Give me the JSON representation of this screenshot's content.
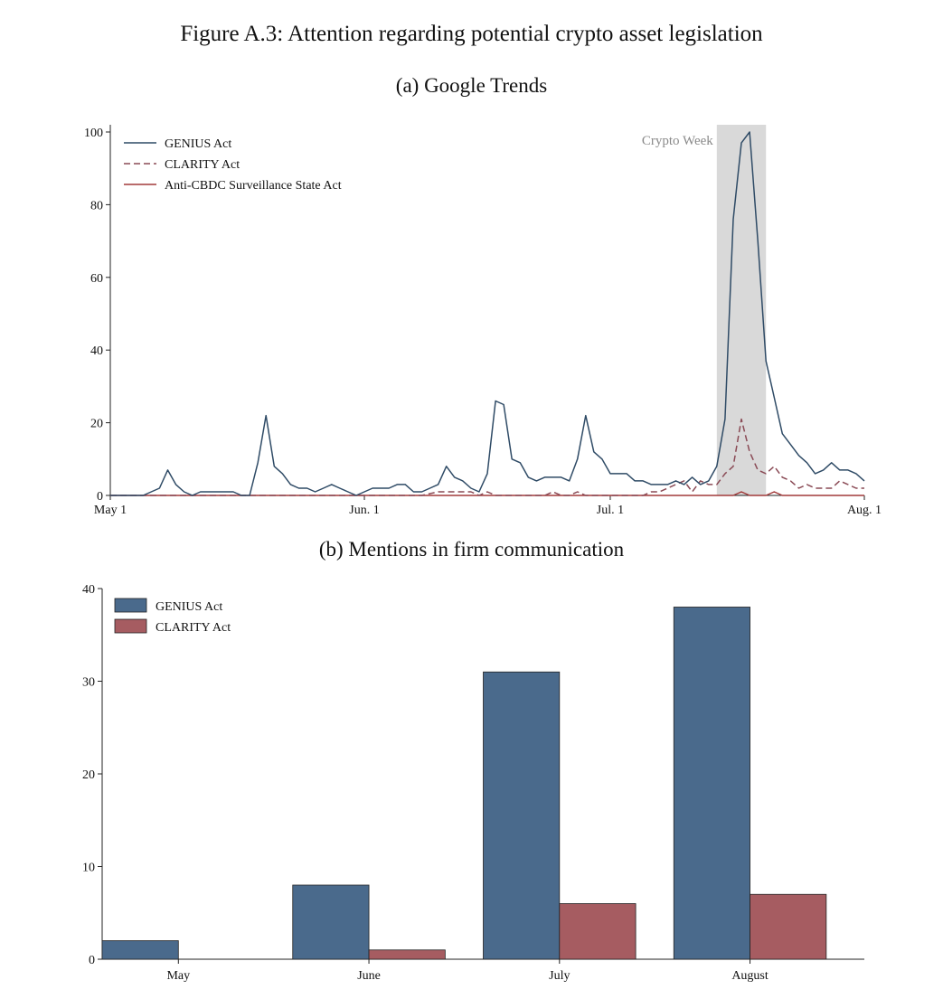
{
  "figure_title": "Figure A.3: Attention regarding potential crypto asset legislation",
  "chart_data": [
    {
      "type": "line",
      "title": "(a) Google Trends",
      "xlabel": "",
      "ylabel": "",
      "ylim": [
        0,
        100
      ],
      "yticks": [
        0,
        20,
        40,
        60,
        80,
        100
      ],
      "xticks": [
        {
          "day": 0,
          "label": "May 1"
        },
        {
          "day": 31,
          "label": "Jun. 1"
        },
        {
          "day": 61,
          "label": "Jul. 1"
        },
        {
          "day": 92,
          "label": "Aug. 1"
        }
      ],
      "shaded_region": {
        "label": "Crypto Week",
        "from_day": 74,
        "to_day": 80,
        "color": "#d9d9d9"
      },
      "legend_position": "top-left",
      "colors": {
        "genius": "#2f4b66",
        "clarity": "#8a4a55",
        "anticbdc": "#a23a3a"
      },
      "series": [
        {
          "name": "GENIUS Act",
          "style": "solid",
          "x": [
            0,
            1,
            2,
            3,
            4,
            5,
            6,
            7,
            8,
            9,
            10,
            11,
            12,
            13,
            14,
            15,
            16,
            17,
            18,
            19,
            20,
            21,
            22,
            23,
            24,
            25,
            26,
            27,
            28,
            29,
            30,
            31,
            32,
            33,
            34,
            35,
            36,
            37,
            38,
            39,
            40,
            41,
            42,
            43,
            44,
            45,
            46,
            47,
            48,
            49,
            50,
            51,
            52,
            53,
            54,
            55,
            56,
            57,
            58,
            59,
            60,
            61,
            62,
            63,
            64,
            65,
            66,
            67,
            68,
            69,
            70,
            71,
            72,
            73,
            74,
            75,
            76,
            77,
            78,
            79,
            80,
            81,
            82,
            83,
            84,
            85,
            86,
            87,
            88,
            89,
            90,
            91,
            92
          ],
          "y": [
            0,
            0,
            0,
            0,
            0,
            1,
            2,
            7,
            3,
            1,
            0,
            1,
            1,
            1,
            1,
            1,
            0,
            0,
            9,
            22,
            8,
            6,
            3,
            2,
            2,
            1,
            2,
            3,
            2,
            1,
            0,
            1,
            2,
            2,
            2,
            3,
            3,
            1,
            1,
            2,
            3,
            8,
            5,
            4,
            2,
            1,
            6,
            26,
            25,
            10,
            9,
            5,
            4,
            5,
            5,
            5,
            4,
            10,
            22,
            12,
            10,
            6,
            6,
            6,
            4,
            4,
            3,
            3,
            3,
            4,
            3,
            5,
            3,
            4,
            8,
            21,
            76,
            97,
            100,
            70,
            37,
            27,
            17,
            14,
            11,
            9,
            6,
            7,
            9,
            7,
            7,
            6,
            4
          ]
        },
        {
          "name": "CLARITY Act",
          "style": "dashed",
          "x": [
            0,
            38,
            40,
            42,
            44,
            45,
            46,
            47,
            52,
            53,
            54,
            55,
            56,
            57,
            58,
            59,
            60,
            65,
            66,
            67,
            68,
            69,
            70,
            71,
            72,
            73,
            74,
            75,
            76,
            77,
            78,
            79,
            80,
            81,
            82,
            83,
            84,
            85,
            86,
            87,
            88,
            89,
            90,
            91,
            92
          ],
          "y": [
            0,
            0,
            1,
            1,
            1,
            0,
            1,
            0,
            0,
            0,
            1,
            0,
            0,
            1,
            0,
            0,
            0,
            0,
            1,
            1,
            2,
            3,
            4,
            1,
            4,
            3,
            3,
            6,
            8,
            21,
            12,
            7,
            6,
            8,
            5,
            4,
            2,
            3,
            2,
            2,
            2,
            4,
            3,
            2,
            2
          ]
        },
        {
          "name": "Anti-CBDC Surveillance State Act",
          "style": "solid",
          "x": [
            0,
            75,
            76,
            77,
            78,
            79,
            80,
            81,
            82,
            83,
            92
          ],
          "y": [
            0,
            0,
            0,
            1,
            0,
            0,
            0,
            1,
            0,
            0,
            0
          ]
        }
      ]
    },
    {
      "type": "bar",
      "title": "(b) Mentions in firm communication",
      "xlabel": "",
      "ylabel": "",
      "ylim": [
        0,
        40
      ],
      "yticks": [
        0,
        10,
        20,
        30,
        40
      ],
      "categories": [
        "May",
        "June",
        "July",
        "August"
      ],
      "legend_position": "top-left",
      "colors": {
        "genius": "#4a6a8c",
        "clarity": "#a65c61"
      },
      "series": [
        {
          "name": "GENIUS Act",
          "values": [
            2,
            8,
            31,
            38
          ]
        },
        {
          "name": "CLARITY Act",
          "values": [
            0,
            1,
            6,
            7
          ]
        }
      ]
    }
  ]
}
